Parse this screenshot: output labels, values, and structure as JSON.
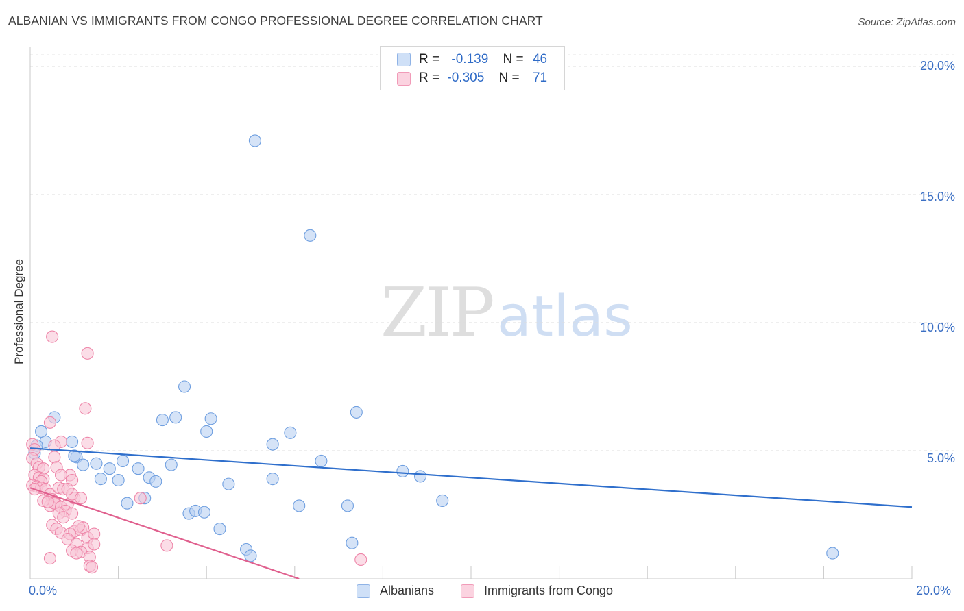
{
  "title": "ALBANIAN VS IMMIGRANTS FROM CONGO PROFESSIONAL DEGREE CORRELATION CHART",
  "source": "Source: ZipAtlas.com",
  "watermark": {
    "part1": "ZIP",
    "part2": "atlas"
  },
  "stats": [
    {
      "r_label": "R =",
      "r_value": "-0.139",
      "n_label": "N =",
      "n_value": "46",
      "color": "#a9c6ef"
    },
    {
      "r_label": "R =",
      "r_value": "-0.305",
      "n_label": "N =",
      "n_value": "71",
      "color": "#f7b7cc"
    }
  ],
  "legend": [
    {
      "label": "Albanians",
      "color": "#a9c6ef"
    },
    {
      "label": "Immigrants from Congo",
      "color": "#f7b7cc"
    }
  ],
  "chart_data": {
    "type": "scatter",
    "title": "ALBANIAN VS IMMIGRANTS FROM CONGO PROFESSIONAL DEGREE CORRELATION CHART",
    "xlabel": "",
    "ylabel": "Professional Degree",
    "xlim": [
      0,
      20
    ],
    "ylim": [
      0,
      20
    ],
    "x_tick_labels": [
      "0.0%",
      "20.0%"
    ],
    "y_ticks": [
      5,
      10,
      15,
      20
    ],
    "y_tick_labels": [
      "5.0%",
      "10.0%",
      "15.0%",
      "20.0%"
    ],
    "grid": "horizontal dashed",
    "legend_position": "bottom-center",
    "series": [
      {
        "name": "Albanians",
        "color": "#6f9fe0",
        "fill": "#b9d1f2",
        "trend_color": "#2f6fcc",
        "trend": {
          "x0": 0,
          "y0": 5.1,
          "x1": 20,
          "y1": 2.8
        },
        "points": [
          [
            0.25,
            5.75
          ],
          [
            0.55,
            6.3
          ],
          [
            0.95,
            5.35
          ],
          [
            0.35,
            5.35
          ],
          [
            0.1,
            4.9
          ],
          [
            0.15,
            5.2
          ],
          [
            1.05,
            4.75
          ],
          [
            1.2,
            4.45
          ],
          [
            1.5,
            4.5
          ],
          [
            1.8,
            4.3
          ],
          [
            2.1,
            4.6
          ],
          [
            2.45,
            4.3
          ],
          [
            1.6,
            3.9
          ],
          [
            2.0,
            3.85
          ],
          [
            2.7,
            3.95
          ],
          [
            2.85,
            3.8
          ],
          [
            3.2,
            4.45
          ],
          [
            3.0,
            6.2
          ],
          [
            3.3,
            6.3
          ],
          [
            3.5,
            7.5
          ],
          [
            4.1,
            6.25
          ],
          [
            4.0,
            5.75
          ],
          [
            4.5,
            3.7
          ],
          [
            3.6,
            2.55
          ],
          [
            3.75,
            2.65
          ],
          [
            3.95,
            2.6
          ],
          [
            2.2,
            2.95
          ],
          [
            2.6,
            3.15
          ],
          [
            4.3,
            1.95
          ],
          [
            4.9,
            1.15
          ],
          [
            5.0,
            0.9
          ],
          [
            5.1,
            17.1
          ],
          [
            6.35,
            13.4
          ],
          [
            5.5,
            5.25
          ],
          [
            5.9,
            5.7
          ],
          [
            5.5,
            3.9
          ],
          [
            6.1,
            2.85
          ],
          [
            6.6,
            4.6
          ],
          [
            7.2,
            2.85
          ],
          [
            7.4,
            6.5
          ],
          [
            7.3,
            1.4
          ],
          [
            8.45,
            4.2
          ],
          [
            8.85,
            4.0
          ],
          [
            9.35,
            3.05
          ],
          [
            18.2,
            1.0
          ],
          [
            1.0,
            4.8
          ]
        ]
      },
      {
        "name": "Immigrants from Congo",
        "color": "#ee86a9",
        "fill": "#f9c7d7",
        "trend_color": "#e0608e",
        "trend": {
          "x0": 0,
          "y0": 3.55,
          "x1": 6.1,
          "y1": 0
        },
        "points": [
          [
            0.05,
            5.25
          ],
          [
            0.1,
            5.05
          ],
          [
            0.05,
            4.7
          ],
          [
            0.15,
            4.5
          ],
          [
            0.2,
            4.35
          ],
          [
            0.3,
            4.3
          ],
          [
            0.1,
            4.05
          ],
          [
            0.2,
            3.95
          ],
          [
            0.3,
            3.9
          ],
          [
            0.25,
            3.8
          ],
          [
            0.05,
            3.65
          ],
          [
            0.15,
            3.6
          ],
          [
            0.25,
            3.55
          ],
          [
            0.35,
            3.5
          ],
          [
            0.1,
            3.5
          ],
          [
            0.45,
            3.3
          ],
          [
            0.5,
            3.1
          ],
          [
            0.55,
            3.0
          ],
          [
            0.6,
            2.9
          ],
          [
            0.45,
            2.85
          ],
          [
            0.55,
            2.95
          ],
          [
            0.7,
            2.8
          ],
          [
            0.85,
            2.9
          ],
          [
            0.8,
            2.65
          ],
          [
            0.65,
            2.55
          ],
          [
            0.95,
            2.55
          ],
          [
            1.0,
            3.15
          ],
          [
            0.75,
            2.4
          ],
          [
            0.5,
            2.1
          ],
          [
            0.6,
            1.95
          ],
          [
            0.7,
            1.8
          ],
          [
            0.9,
            1.75
          ],
          [
            1.0,
            1.85
          ],
          [
            1.15,
            1.9
          ],
          [
            1.2,
            2.0
          ],
          [
            1.3,
            1.6
          ],
          [
            1.45,
            1.75
          ],
          [
            0.85,
            1.55
          ],
          [
            1.05,
            1.35
          ],
          [
            1.3,
            1.2
          ],
          [
            1.45,
            1.35
          ],
          [
            0.95,
            1.1
          ],
          [
            1.15,
            1.05
          ],
          [
            1.35,
            0.85
          ],
          [
            0.45,
            0.8
          ],
          [
            1.35,
            0.5
          ],
          [
            1.4,
            0.45
          ],
          [
            0.45,
            6.1
          ],
          [
            0.5,
            9.45
          ],
          [
            1.3,
            8.8
          ],
          [
            1.25,
            6.65
          ],
          [
            1.3,
            5.3
          ],
          [
            0.7,
            5.35
          ],
          [
            0.55,
            5.2
          ],
          [
            0.55,
            4.75
          ],
          [
            0.6,
            4.35
          ],
          [
            0.9,
            4.05
          ],
          [
            0.95,
            3.85
          ],
          [
            0.65,
            3.55
          ],
          [
            0.75,
            3.5
          ],
          [
            0.95,
            3.3
          ],
          [
            1.15,
            3.15
          ],
          [
            0.7,
            4.05
          ],
          [
            0.85,
            3.5
          ],
          [
            2.5,
            3.15
          ],
          [
            3.1,
            1.3
          ],
          [
            7.5,
            0.75
          ],
          [
            1.05,
            1.0
          ],
          [
            0.3,
            3.05
          ],
          [
            0.4,
            3.0
          ],
          [
            1.1,
            2.05
          ]
        ]
      }
    ]
  }
}
